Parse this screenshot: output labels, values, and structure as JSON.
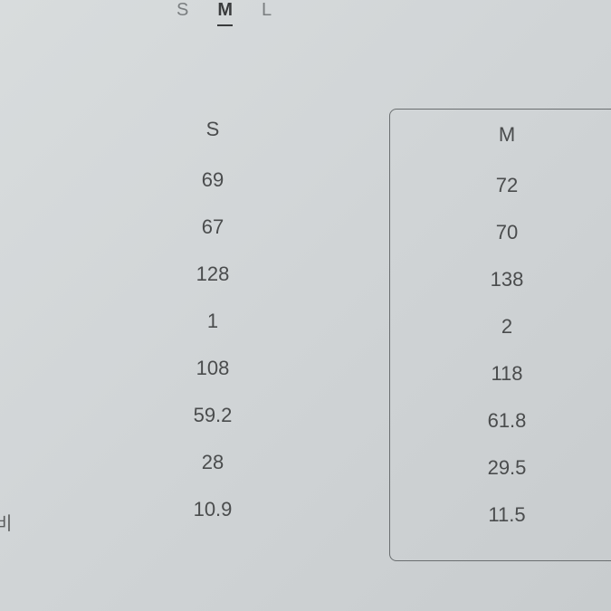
{
  "tabs": {
    "s": "S",
    "m": "M",
    "l": "L"
  },
  "table": {
    "columns": {
      "s": {
        "header": "S",
        "values": [
          "69",
          "67",
          "128",
          "1",
          "108",
          "59.2",
          "28",
          "10.9"
        ]
      },
      "m": {
        "header": "M",
        "values": [
          "72",
          "70",
          "138",
          "2",
          "118",
          "61.8",
          "29.5",
          "11.5"
        ]
      }
    },
    "row_label_partial": "비"
  },
  "styling": {
    "background_gradient": [
      "#d8dcdd",
      "#c8ccce"
    ],
    "text_color": "#4a4c4d",
    "tab_inactive_color": "#7a7e80",
    "tab_active_color": "#3a3c3d",
    "border_color": "#6a6e70",
    "font_size_cell": 22,
    "font_size_tab": 20,
    "selected_column_border_radius": 8
  }
}
